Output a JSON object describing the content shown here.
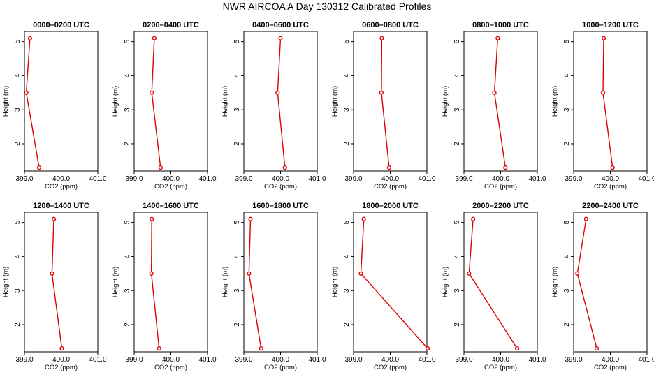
{
  "title": "NWR AIRCOA A  Day 130312  Calibrated Profiles",
  "colors": {
    "line": "#dd0000",
    "axis": "#000000"
  },
  "chart_data": {
    "type": "line",
    "xlabel": "CO2 (ppm)",
    "ylabel": "Height (m)",
    "xlim": [
      399.0,
      401.0
    ],
    "ylim": [
      1.2,
      5.3
    ],
    "xticks": [
      "399.0",
      "400.0",
      "401.0"
    ],
    "yticks": [
      "2",
      "3",
      "4",
      "5"
    ],
    "heights": [
      5.1,
      3.5,
      1.3
    ],
    "panels": [
      {
        "title": "0000–0200 UTC",
        "x": [
          399.15,
          399.05,
          399.4
        ]
      },
      {
        "title": "0200–0400 UTC",
        "x": [
          399.55,
          399.48,
          399.72
        ]
      },
      {
        "title": "0400–0600 UTC",
        "x": [
          400.0,
          399.92,
          400.12
        ]
      },
      {
        "title": "0600–0800 UTC",
        "x": [
          399.77,
          399.76,
          399.97
        ]
      },
      {
        "title": "0800–1000 UTC",
        "x": [
          399.92,
          399.83,
          400.13
        ]
      },
      {
        "title": "1000–1200 UTC",
        "x": [
          399.82,
          399.8,
          400.06
        ]
      },
      {
        "title": "1200–1400 UTC",
        "x": [
          399.8,
          399.75,
          400.02
        ]
      },
      {
        "title": "1400–1600 UTC",
        "x": [
          399.48,
          399.47,
          399.68
        ]
      },
      {
        "title": "1600–1800 UTC",
        "x": [
          399.18,
          399.14,
          399.47
        ]
      },
      {
        "title": "1800–2000 UTC",
        "x": [
          399.28,
          399.2,
          401.02
        ]
      },
      {
        "title": "2000–2200 UTC",
        "x": [
          399.25,
          399.14,
          400.45
        ]
      },
      {
        "title": "2200–2400 UTC",
        "x": [
          399.34,
          399.1,
          399.63
        ]
      }
    ]
  }
}
